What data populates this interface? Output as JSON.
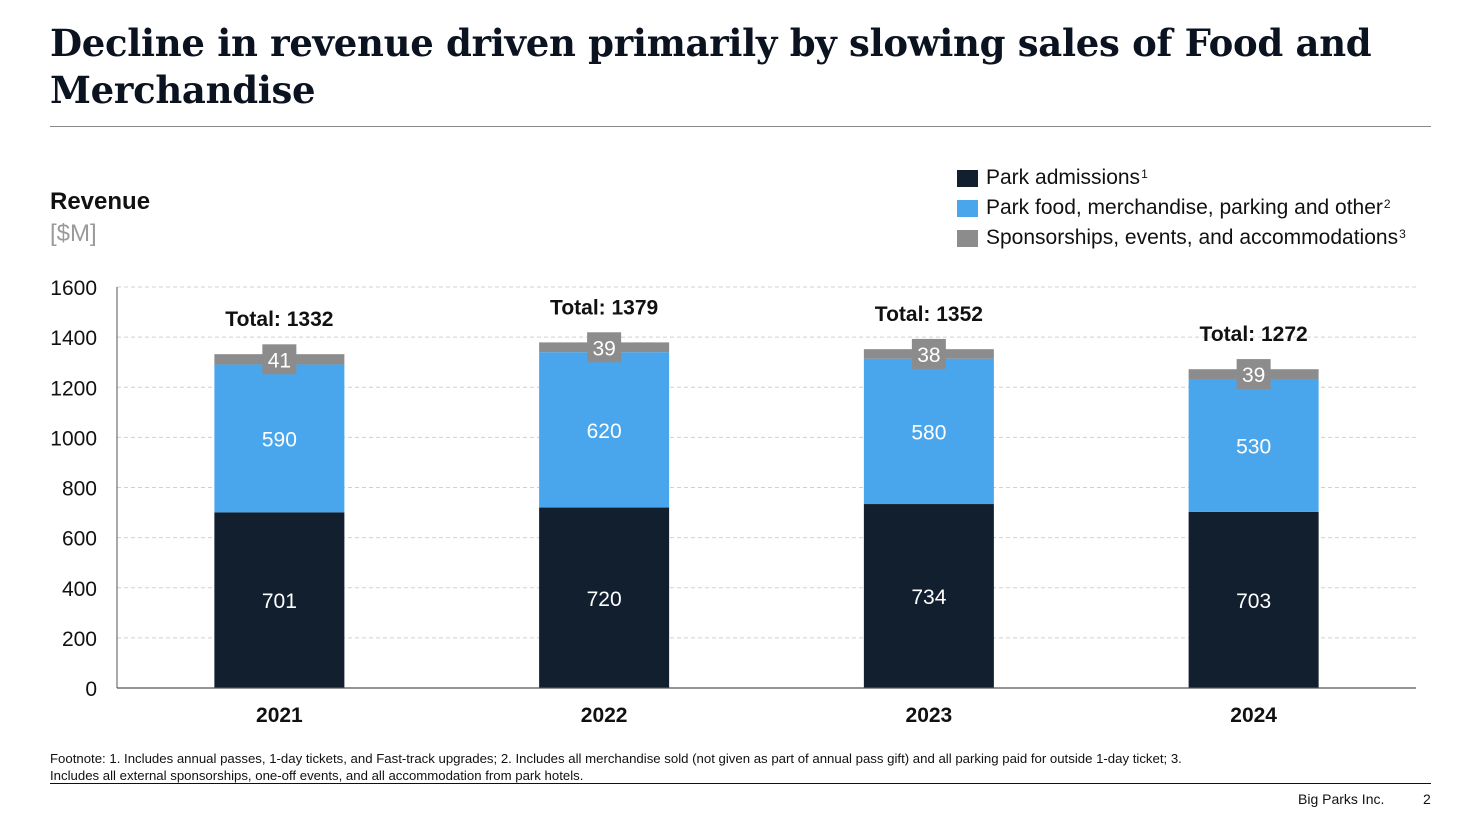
{
  "slide": {
    "title": "Decline in revenue driven primarily by slowing sales of Food and Merchandise",
    "footnote": "Footnote: 1. Includes annual passes, 1-day tickets, and Fast-track upgrades; 2. Includes all merchandise sold (not given as part of annual pass gift) and all parking paid for outside 1-day ticket; 3. Includes all external sponsorships, one-off events, and all accommodation from park hotels.",
    "brand": "Big Parks Inc.",
    "page_number": "2"
  },
  "chart_data": {
    "type": "bar",
    "stacked": true,
    "ylabel": "Revenue",
    "yunit": "[$M]",
    "ylim": [
      0,
      1600
    ],
    "yticks": [
      0,
      200,
      400,
      600,
      800,
      1000,
      1200,
      1400,
      1600
    ],
    "grid": "horizontal dashed",
    "legend_position": "top-right",
    "categories": [
      "2021",
      "2022",
      "2023",
      "2024"
    ],
    "series": [
      {
        "name": "Park admissions",
        "footnote": "1",
        "color": "#111f2f",
        "values": [
          701,
          720,
          734,
          703
        ]
      },
      {
        "name": "Park food, merchandise, parking and other",
        "footnote": "2",
        "color": "#4aa6ec",
        "values": [
          590,
          620,
          580,
          530
        ]
      },
      {
        "name": "Sponsorships, events, and accommodations",
        "footnote": "3",
        "color": "#8c8c8c",
        "values": [
          41,
          39,
          38,
          39
        ]
      }
    ],
    "total_prefix": "Total: ",
    "totals": [
      1332,
      1379,
      1352,
      1272
    ]
  }
}
